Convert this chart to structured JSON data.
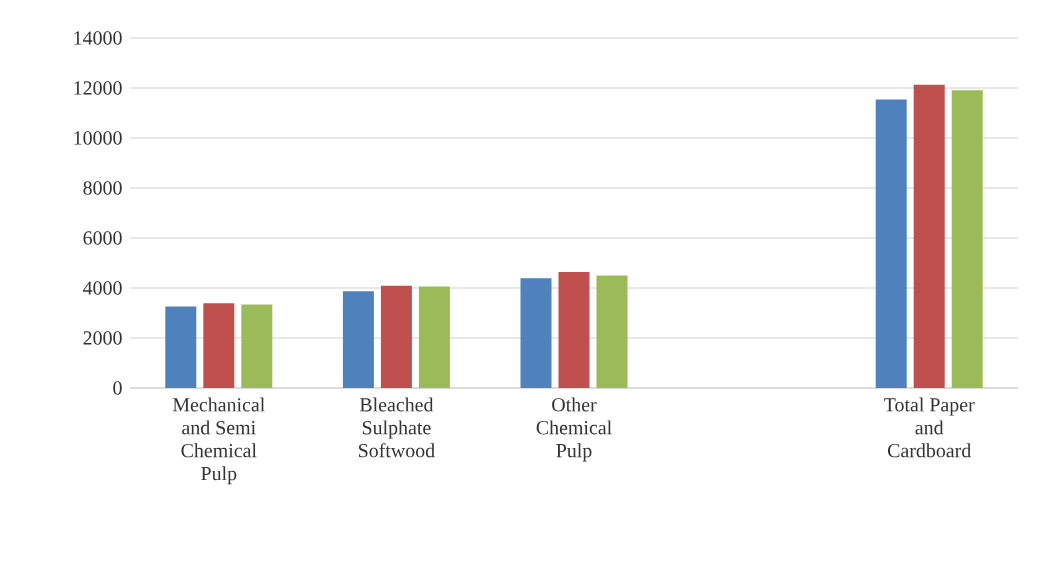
{
  "chart_data": {
    "type": "bar",
    "categories": [
      "Mechanical and Semi Chemical Pulp",
      "Bleached Sulphate Softwood",
      "Other Chemical Pulp",
      null,
      "Total Paper and Cardboard"
    ],
    "series": [
      {
        "color": "#4f81bd",
        "values": [
          3260,
          3870,
          4390,
          null,
          11540
        ]
      },
      {
        "color": "#c0504d",
        "values": [
          3390,
          4090,
          4640,
          null,
          12130
        ]
      },
      {
        "color": "#9bbb59",
        "values": [
          3340,
          4060,
          4500,
          null,
          11910
        ]
      }
    ],
    "ylim": [
      0,
      14000
    ],
    "yticks": [
      0,
      2000,
      4000,
      6000,
      8000,
      10000,
      12000,
      14000
    ],
    "grid": "y"
  }
}
